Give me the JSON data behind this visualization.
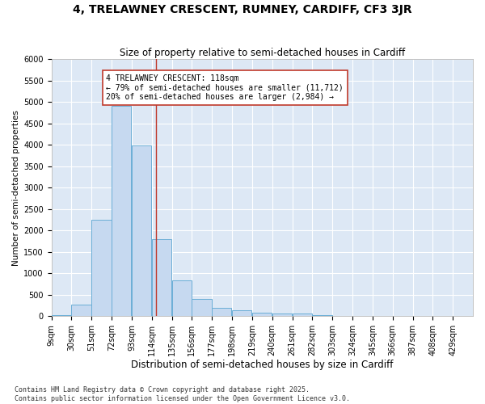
{
  "title": "4, TRELAWNEY CRESCENT, RUMNEY, CARDIFF, CF3 3JR",
  "subtitle": "Size of property relative to semi-detached houses in Cardiff",
  "xlabel": "Distribution of semi-detached houses by size in Cardiff",
  "ylabel": "Number of semi-detached properties",
  "footnote1": "Contains HM Land Registry data © Crown copyright and database right 2025.",
  "footnote2": "Contains public sector information licensed under the Open Government Licence v3.0.",
  "annotation_line1": "4 TRELAWNEY CRESCENT: 118sqm",
  "annotation_line2": "← 79% of semi-detached houses are smaller (11,712)",
  "annotation_line3": "20% of semi-detached houses are larger (2,984) →",
  "property_size": 118,
  "bin_starts": [
    9,
    30,
    51,
    72,
    93,
    114,
    135,
    156,
    177,
    198,
    219,
    240,
    261,
    282,
    303,
    324,
    345,
    366,
    387,
    408,
    429
  ],
  "bin_labels": [
    "9sqm",
    "30sqm",
    "51sqm",
    "72sqm",
    "93sqm",
    "114sqm",
    "135sqm",
    "156sqm",
    "177sqm",
    "198sqm",
    "219sqm",
    "240sqm",
    "261sqm",
    "282sqm",
    "303sqm",
    "324sqm",
    "345sqm",
    "366sqm",
    "387sqm",
    "408sqm",
    "429sqm"
  ],
  "bar_heights": [
    30,
    260,
    2250,
    4900,
    3980,
    1790,
    840,
    400,
    200,
    130,
    80,
    55,
    55,
    30,
    10,
    5,
    5,
    3,
    3,
    2,
    2
  ],
  "bar_color": "#c6d9f0",
  "bar_edgecolor": "#6baed6",
  "vline_color": "#c0392b",
  "ylim": [
    0,
    6000
  ],
  "yticks": [
    0,
    500,
    1000,
    1500,
    2000,
    2500,
    3000,
    3500,
    4000,
    4500,
    5000,
    5500,
    6000
  ],
  "bg_color": "#ffffff",
  "plot_bg_color": "#dde8f5",
  "grid_color": "#ffffff",
  "title_fontsize": 10,
  "subtitle_fontsize": 8.5,
  "xlabel_fontsize": 8.5,
  "ylabel_fontsize": 7.5,
  "tick_fontsize": 7,
  "annotation_fontsize": 7,
  "footnote_fontsize": 6
}
